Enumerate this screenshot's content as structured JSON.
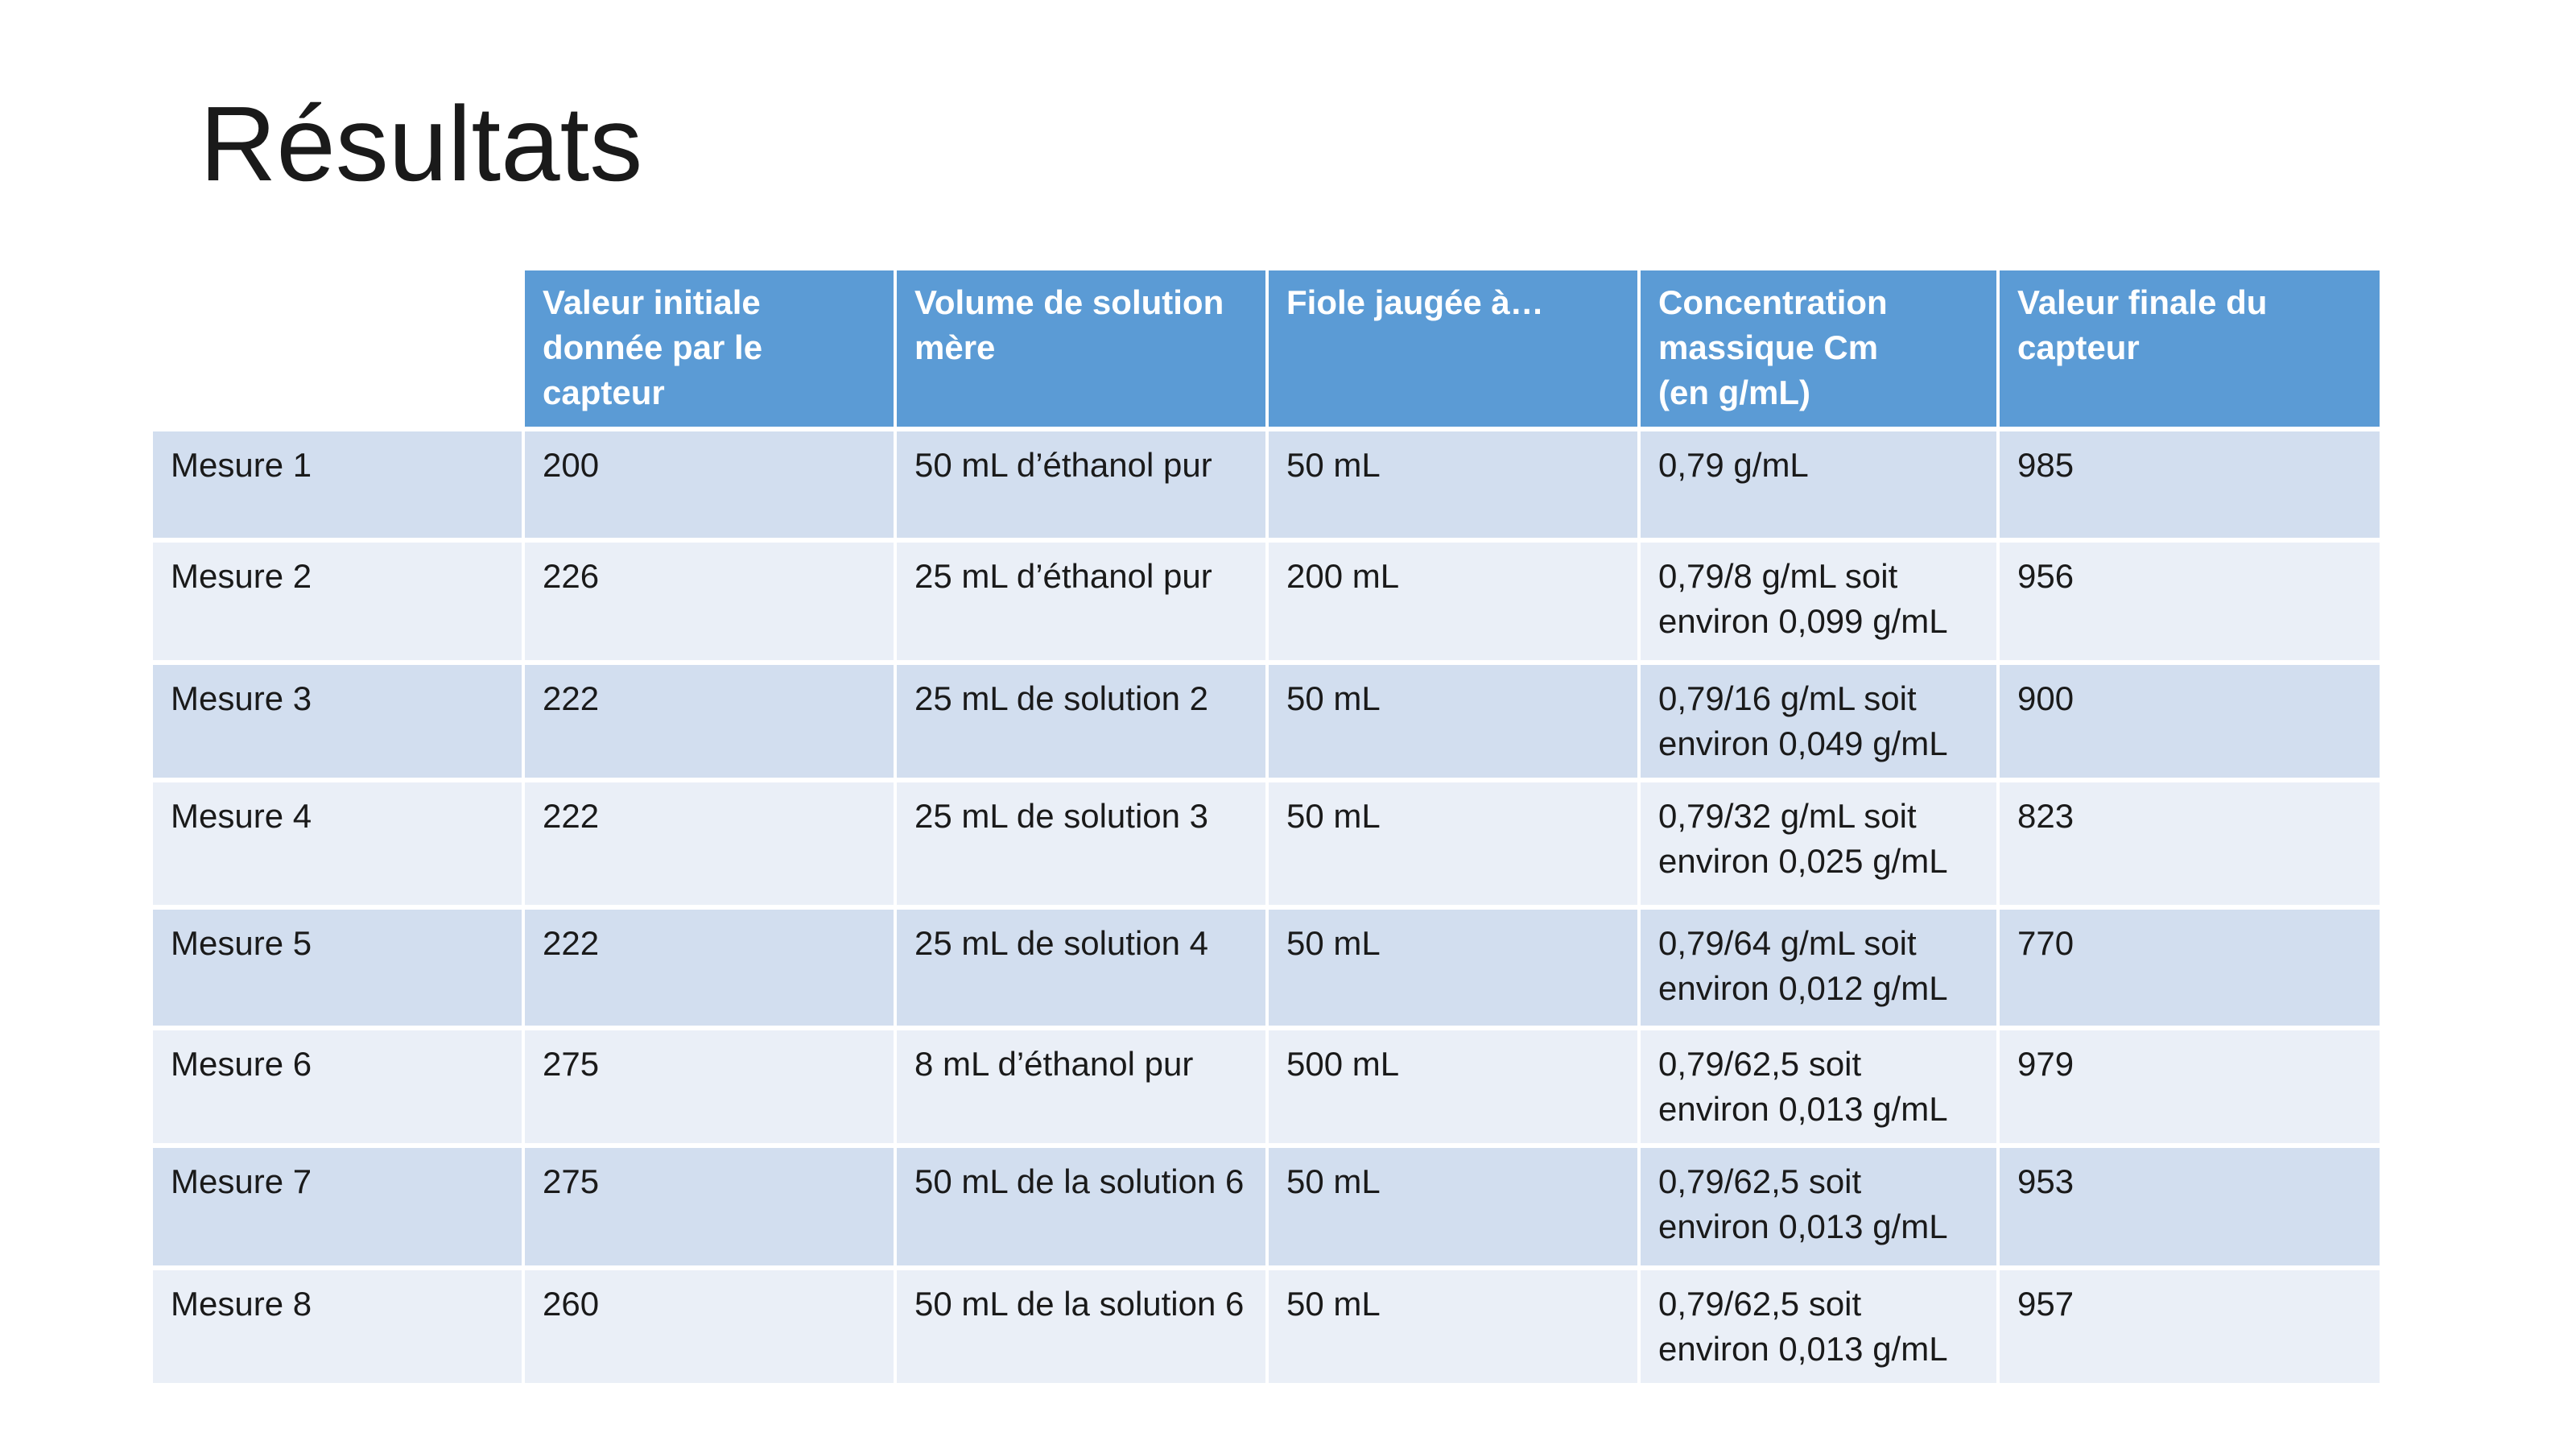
{
  "slide": {
    "title": "Résultats"
  },
  "table": {
    "headers": [
      "",
      "Valeur initiale donnée par le capteur",
      "Volume de solution mère",
      "Fiole jaugée à…",
      "Concentration massique Cm (en g/mL)",
      "Valeur finale du capteur"
    ],
    "header_lines": {
      "h1": [
        "Valeur initiale",
        "donnée par le",
        "capteur"
      ],
      "h2": [
        "Volume de solution",
        "mère"
      ],
      "h3": [
        "Fiole jaugée à…"
      ],
      "h4": [
        "Concentration",
        "massique Cm",
        "(en g/mL)"
      ],
      "h5": [
        "Valeur finale du",
        "capteur"
      ]
    },
    "rows": [
      {
        "label": "Mesure 1",
        "initial": "200",
        "volume": "50 mL d’éthanol pur",
        "fiole": "50 mL",
        "conc": "0,79 g/mL",
        "final": "985"
      },
      {
        "label": "Mesure 2",
        "initial": "226",
        "volume": "25 mL d’éthanol pur",
        "fiole": "200 mL",
        "conc": "0,79/8 g/mL soit environ 0,099 g/mL",
        "final": "956"
      },
      {
        "label": "Mesure 3",
        "initial": "222",
        "volume": "25 mL de solution 2",
        "fiole": "50 mL",
        "conc": "0,79/16 g/mL soit environ 0,049 g/mL",
        "final": "900"
      },
      {
        "label": "Mesure 4",
        "initial": "222",
        "volume": "25 mL de solution 3",
        "fiole": "50 mL",
        "conc": "0,79/32 g/mL soit environ 0,025 g/mL",
        "final": "823"
      },
      {
        "label": "Mesure 5",
        "initial": "222",
        "volume": "25 mL de solution 4",
        "fiole": "50 mL",
        "conc": "0,79/64 g/mL soit environ 0,012 g/mL",
        "final": "770"
      },
      {
        "label": "Mesure 6",
        "initial": "275",
        "volume": "8 mL d’éthanol pur",
        "fiole": "500 mL",
        "conc": "0,79/62,5 soit environ 0,013 g/mL",
        "final": "979"
      },
      {
        "label": "Mesure 7",
        "initial": "275",
        "volume": "50 mL de la solution 6",
        "fiole": "50 mL",
        "conc": "0,79/62,5 soit environ 0,013 g/mL",
        "final": "953"
      },
      {
        "label": "Mesure 8",
        "initial": "260",
        "volume": "50 mL de la solution 6",
        "fiole": "50 mL",
        "conc": "0,79/62,5 soit environ 0,013 g/mL",
        "final": "957"
      }
    ]
  },
  "colors": {
    "header_bg": "#5b9bd5",
    "row_odd_bg": "#d2deef",
    "row_even_bg": "#eaeff7",
    "text": "#1a1a1a"
  }
}
